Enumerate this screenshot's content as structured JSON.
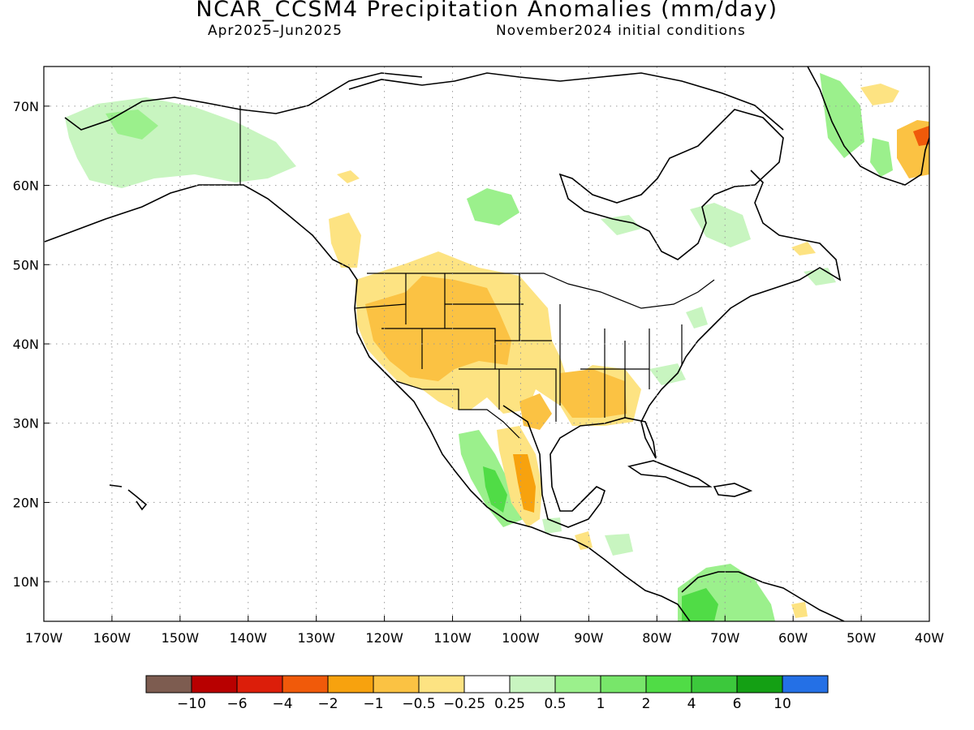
{
  "title": "NCAR_CCSM4 Precipitation Anomalies (mm/day)",
  "period": "Apr2025–Jun2025",
  "init": "November2024 initial conditions",
  "map": {
    "lon_range": [
      -170,
      -40
    ],
    "lat_range": [
      5,
      75
    ],
    "grid": true
  },
  "lat_labels": [
    "70N",
    "60N",
    "50N",
    "40N",
    "30N",
    "20N",
    "10N"
  ],
  "lon_labels": [
    "170W",
    "160W",
    "150W",
    "140W",
    "130W",
    "120W",
    "110W",
    "100W",
    "90W",
    "80W",
    "70W",
    "60W",
    "50W",
    "40W"
  ],
  "legend": {
    "colors": [
      "#7d5c50",
      "#b80000",
      "#dc1e0a",
      "#f05a0a",
      "#f7a20e",
      "#fbc243",
      "#fde382",
      "#ffffff",
      "#c8f5c0",
      "#9bf08c",
      "#78e66a",
      "#50dc46",
      "#3cc83c",
      "#14a014",
      "#2470e6"
    ],
    "labels": [
      "−10",
      "−6",
      "−4",
      "−2",
      "−1",
      "−0.5",
      "−0.25",
      "0.25",
      "0.5",
      "1",
      "2",
      "4",
      "6",
      "10"
    ]
  },
  "colors": {
    "dry_light": "#fde382",
    "dry_mid": "#fbc243",
    "dry_strong": "#f7a20e",
    "dry_heavy": "#f05a0a",
    "wet_light": "#c8f5c0",
    "wet_mid": "#9bf08c",
    "wet_strong": "#50dc46",
    "wet_heavy": "#3cc83c"
  }
}
